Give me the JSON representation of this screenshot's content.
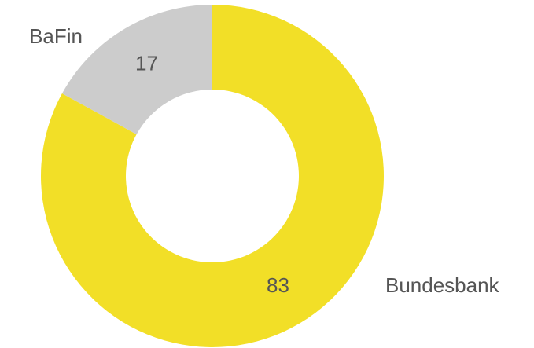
{
  "chart_data": {
    "type": "pie",
    "categories": [
      "Bundesbank",
      "BaFin"
    ],
    "values": [
      83,
      17
    ],
    "colors": [
      "#f2df27",
      "#cccccc"
    ]
  }
}
